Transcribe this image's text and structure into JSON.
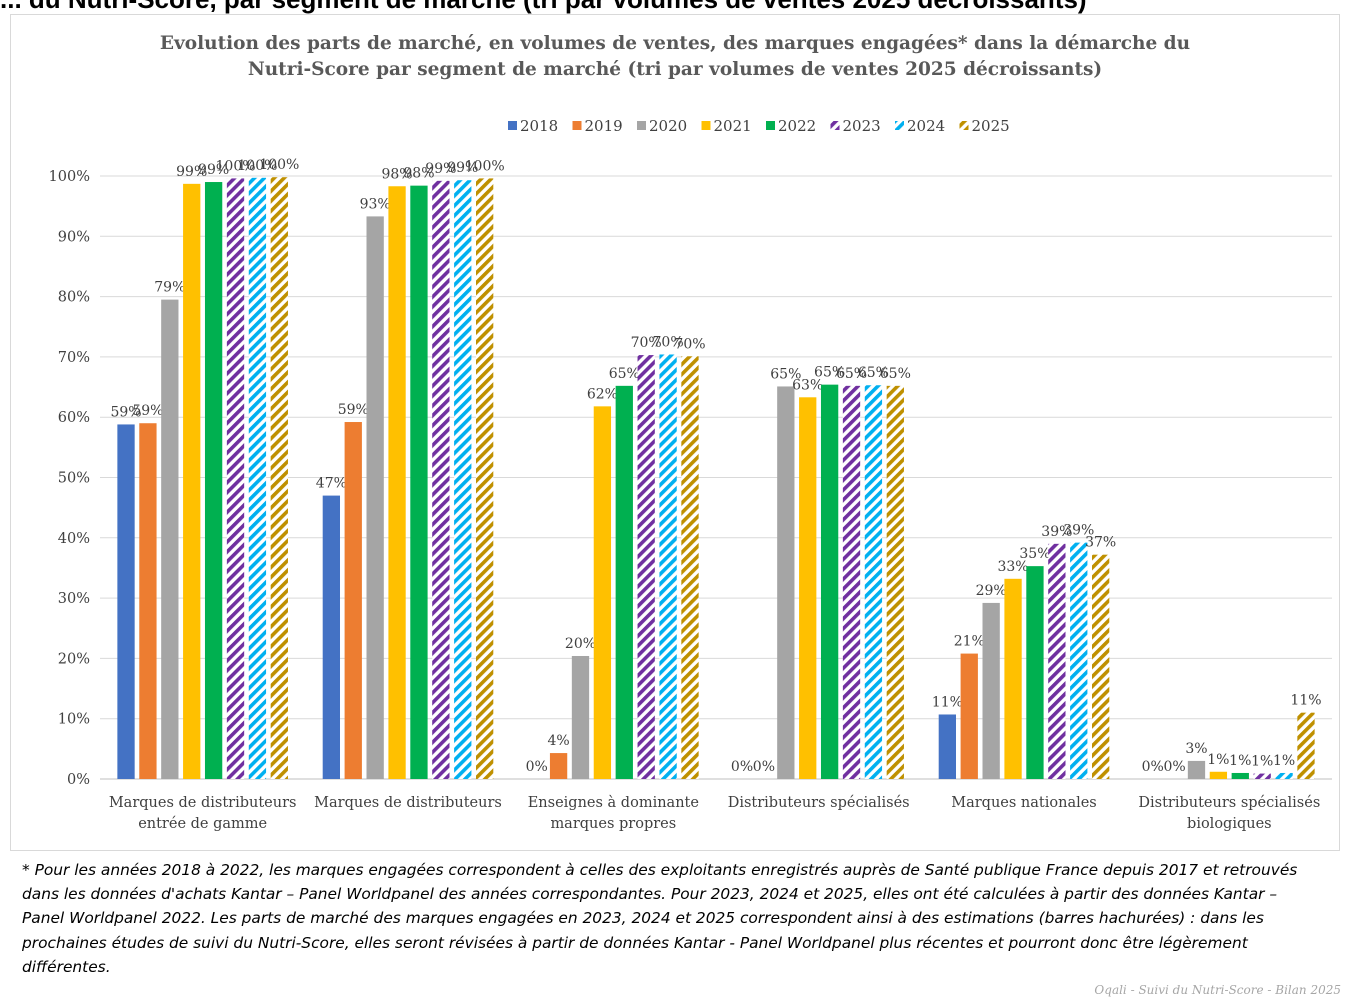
{
  "header_cut": "... du Nutri-Score, par segment de marché (tri par volumes de ventes 2025 décroissants)",
  "footnote": {
    "part1": "* Pour les années 2018 à 2022, les marques engagées correspondent à celles des exploitants enregistrés auprès de Santé publique France depuis 2017 et retrouvés dans les données d'achats Kantar – Panel Worldpanel des années correspondantes. Pour 2023, 2024 et 2025, elles ont été calculées à partir des ",
    "part2": "données Kantar – Panel Worldpanel 2022",
    "part3": ". Les parts de marché des marques engagées en 2023, 2024 et 2025 correspondent ainsi à des estimations (barres hachurées) : dans les prochaines études de suivi du Nutri-Score, elles seront révisées à partir de données Kantar - Panel Worldpanel plus récentes et pourront donc être légèrement différentes."
  },
  "source": "Oqali - Suivi du Nutri-Score - Bilan 2025",
  "chart_data": {
    "type": "bar",
    "title": "Evolution des parts de marché, en volumes de ventes, des marques engagées* dans la démarche du Nutri-Score par segment de marché (tri par volumes de ventes 2025 décroissants)",
    "title_lines": [
      "Evolution des parts de marché, en volumes de ventes, des marques engagées* dans la démarche du",
      "Nutri-Score par segment de marché (tri par volumes de ventes 2025 décroissants)"
    ],
    "categories": [
      [
        "Marques de distributeurs",
        "entrée de gamme"
      ],
      [
        "Marques de distributeurs"
      ],
      [
        "Enseignes à dominante",
        "marques propres"
      ],
      [
        "Distributeurs spécialisés"
      ],
      [
        "Marques nationales"
      ],
      [
        "Distributeurs spécialisés",
        "biologiques"
      ]
    ],
    "ylim": [
      0,
      100
    ],
    "yticks": [
      "0%",
      "10%",
      "20%",
      "30%",
      "40%",
      "50%",
      "60%",
      "70%",
      "80%",
      "90%",
      "100%"
    ],
    "grid": true,
    "legend_position": "top",
    "series": [
      {
        "name": "2018",
        "color": "#4472c4",
        "pattern": "solid",
        "values": [
          58.8,
          47.0,
          0,
          0,
          10.7,
          0
        ],
        "labels": [
          "59%",
          "47%",
          "0%",
          "0%",
          "11%",
          "0%"
        ]
      },
      {
        "name": "2019",
        "color": "#ed7d31",
        "pattern": "solid",
        "values": [
          59.0,
          59.2,
          4.3,
          0,
          20.8,
          0
        ],
        "labels": [
          "59%",
          "59%",
          "4%",
          "0%",
          "21%",
          "0%"
        ]
      },
      {
        "name": "2020",
        "color": "#a5a5a5",
        "pattern": "solid",
        "values": [
          79.5,
          93.3,
          20.4,
          65.1,
          29.2,
          3.0
        ],
        "labels": [
          "79%",
          "93%",
          "20%",
          "65%",
          "29%",
          "3%"
        ]
      },
      {
        "name": "2021",
        "color": "#ffc000",
        "pattern": "solid",
        "values": [
          98.7,
          98.3,
          61.8,
          63.3,
          33.2,
          1.2
        ],
        "labels": [
          "99%",
          "98%",
          "62%",
          "63%",
          "33%",
          "1%"
        ]
      },
      {
        "name": "2022",
        "color": "#00b050",
        "pattern": "solid",
        "values": [
          99.0,
          98.4,
          65.2,
          65.4,
          35.3,
          1.0
        ],
        "labels": [
          "99%",
          "98%",
          "65%",
          "65%",
          "35%",
          "1%"
        ]
      },
      {
        "name": "2023",
        "color": "#7030a0",
        "pattern": "hatch",
        "values": [
          99.6,
          99.2,
          70.3,
          65.2,
          39.0,
          0.9
        ],
        "labels": [
          "100%",
          "99%",
          "70%",
          "65%",
          "39%",
          "1%"
        ]
      },
      {
        "name": "2024",
        "color": "#00b0f0",
        "pattern": "hatch",
        "values": [
          99.7,
          99.3,
          70.4,
          65.3,
          39.2,
          1.0
        ],
        "labels": [
          "100%",
          "99%",
          "70%",
          "65%",
          "39%",
          "1%"
        ]
      },
      {
        "name": "2025",
        "color": "#bf9000",
        "pattern": "hatch",
        "values": [
          99.8,
          99.6,
          70.1,
          65.2,
          37.2,
          11.0
        ],
        "labels": [
          "100%",
          "100%",
          "70%",
          "65%",
          "37%",
          "11%"
        ]
      }
    ]
  }
}
